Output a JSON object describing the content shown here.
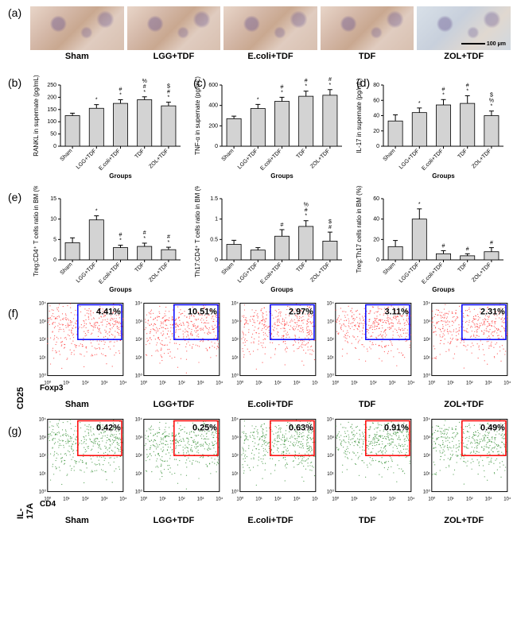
{
  "groups": [
    "Sham",
    "LGG+TDF",
    "E.coli+TDF",
    "TDF",
    "ZOL+TDF"
  ],
  "panelA": {
    "scale_text": "100 μm"
  },
  "panelB": {
    "ylabel": "RANKL in supernate (pg/mL)",
    "xlabel": "Groups",
    "ylim": [
      0,
      250
    ],
    "ytick_step": 50,
    "values": [
      125,
      155,
      175,
      190,
      165
    ],
    "errors": [
      10,
      15,
      15,
      12,
      15
    ],
    "sigs": [
      "",
      "*",
      "* #",
      "* # %",
      "* # $"
    ],
    "bar_color": "#d3d3d3"
  },
  "panelC": {
    "ylabel": "TNF-α in supernate (pg/mL)",
    "xlabel": "Groups",
    "ylim": [
      0,
      600
    ],
    "ytick_step": 200,
    "values": [
      270,
      370,
      440,
      490,
      500
    ],
    "errors": [
      25,
      40,
      40,
      50,
      55
    ],
    "sigs": [
      "",
      "*",
      "* #",
      "* #",
      "* #"
    ],
    "bar_color": "#d3d3d3"
  },
  "panelD": {
    "ylabel": "IL-17 in supernate (pg/mL)",
    "xlabel": "Groups",
    "ylim": [
      0,
      80
    ],
    "ytick_step": 20,
    "values": [
      33,
      44,
      54,
      56,
      40
    ],
    "errors": [
      8,
      6,
      7,
      10,
      6
    ],
    "sigs": [
      "",
      "*",
      "* #",
      "* #",
      "* % $"
    ],
    "bar_color": "#d3d3d3"
  },
  "panelE1": {
    "ylabel": "Treg:CD4⁺ T cells ratio in BM (%)",
    "xlabel": "Groups",
    "ylim": [
      0,
      15
    ],
    "ytick_step": 5,
    "values": [
      4.2,
      9.8,
      3.0,
      3.3,
      2.5
    ],
    "errors": [
      1.2,
      1.0,
      0.6,
      0.8,
      0.6
    ],
    "sigs": [
      "",
      "*",
      "* #",
      "* #",
      "* #"
    ],
    "bar_color": "#d3d3d3"
  },
  "panelE2": {
    "ylabel": "Th17:CD4⁺ T cells ratio in BM (%)",
    "xlabel": "Groups",
    "ylim": [
      0,
      1.5
    ],
    "ytick_step": 0.5,
    "values": [
      0.38,
      0.24,
      0.58,
      0.82,
      0.46
    ],
    "errors": [
      0.1,
      0.06,
      0.16,
      0.14,
      0.22
    ],
    "sigs": [
      "",
      "",
      "#",
      "* # %",
      "# $"
    ],
    "bar_color": "#d3d3d3"
  },
  "panelE3": {
    "ylabel": "Treg:Th17 cells ratio in BM (%)",
    "xlabel": "Groups",
    "ylim": [
      0,
      60
    ],
    "ytick_step": 20,
    "values": [
      13,
      40,
      6,
      4,
      8
    ],
    "errors": [
      6,
      10,
      3,
      2,
      4
    ],
    "sigs": [
      "",
      "*",
      "#",
      "#",
      "#"
    ],
    "bar_color": "#d3d3d3"
  },
  "panelF": {
    "y_axis": "CD25",
    "x_axis": "Foxp3",
    "gate_color": "#0000ff",
    "dot_color": "#ff3333",
    "percentages": [
      "4.41%",
      "10.51%",
      "2.97%",
      "3.11%",
      "2.31%"
    ]
  },
  "panelG": {
    "y_axis": "IL-17A",
    "x_axis": "CD4",
    "gate_color": "#ff0000",
    "dot_color": "#2e8b2e",
    "percentages": [
      "0.42%",
      "0.25%",
      "0.63%",
      "0.91%",
      "0.49%"
    ]
  }
}
